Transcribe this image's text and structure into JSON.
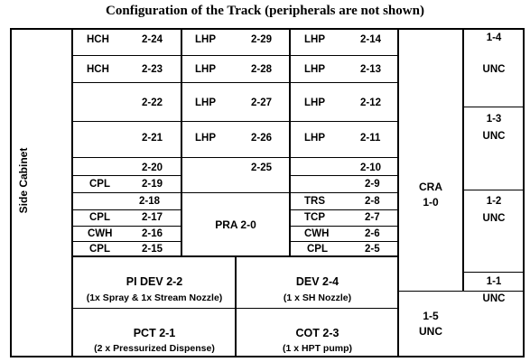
{
  "title": "Configuration of the Track (peripherals are not shown)",
  "side_cabinet": "Side Cabinet",
  "grid": {
    "r24": {
      "m1": "HCH",
      "n1": "2-24",
      "m2": "LHP",
      "n2": "2-29",
      "m3": "LHP",
      "n3": "2-14"
    },
    "r23": {
      "m1": "HCH",
      "n1": "2-23",
      "m2": "LHP",
      "n2": "2-28",
      "m3": "LHP",
      "n3": "2-13"
    },
    "r22": {
      "n1": "2-22",
      "m2": "LHP",
      "n2": "2-27",
      "m3": "LHP",
      "n3": "2-12"
    },
    "r21": {
      "n1": "2-21",
      "m2": "LHP",
      "n2": "2-26",
      "m3": "LHP",
      "n3": "2-11"
    },
    "r20": {
      "n1": "2-20",
      "n2": "2-25",
      "n3": "2-10"
    },
    "r19": {
      "m1": "CPL",
      "n1": "2-19",
      "n3": "2-9"
    },
    "r18": {
      "n1": "2-18",
      "m3": "TRS",
      "n3": "2-8"
    },
    "r17": {
      "m1": "CPL",
      "n1": "2-17",
      "m3": "TCP",
      "n3": "2-7"
    },
    "r16": {
      "m1": "CWH",
      "n1": "2-16",
      "m3": "CWH",
      "n3": "2-6"
    },
    "r15": {
      "m1": "CPL",
      "n1": "2-15",
      "m3": "CPL",
      "n3": "2-5"
    }
  },
  "pra": "PRA 2-0",
  "cra": {
    "name": "CRA",
    "num": "1-0"
  },
  "units": {
    "u14": {
      "num": "1-4",
      "label": "UNC"
    },
    "u13": {
      "num": "1-3",
      "label": "UNC"
    },
    "u12": {
      "num": "1-2",
      "label": "UNC"
    },
    "u11": {
      "num": "1-1",
      "label": "UNC"
    },
    "u15": {
      "num": "1-5",
      "label": "UNC"
    }
  },
  "bottom": {
    "pidev": {
      "name": "PI DEV 2-2",
      "sub": "(1x  Spray  & 1x  Stream Nozzle)"
    },
    "dev": {
      "name": "DEV 2-4",
      "sub": "(1 x SH Nozzle)"
    },
    "pct": {
      "name": "PCT 2-1",
      "sub": "(2 x Pressurized Dispense)"
    },
    "cot": {
      "name": "COT 2-3",
      "sub": "(1 x HPT pump)"
    }
  }
}
